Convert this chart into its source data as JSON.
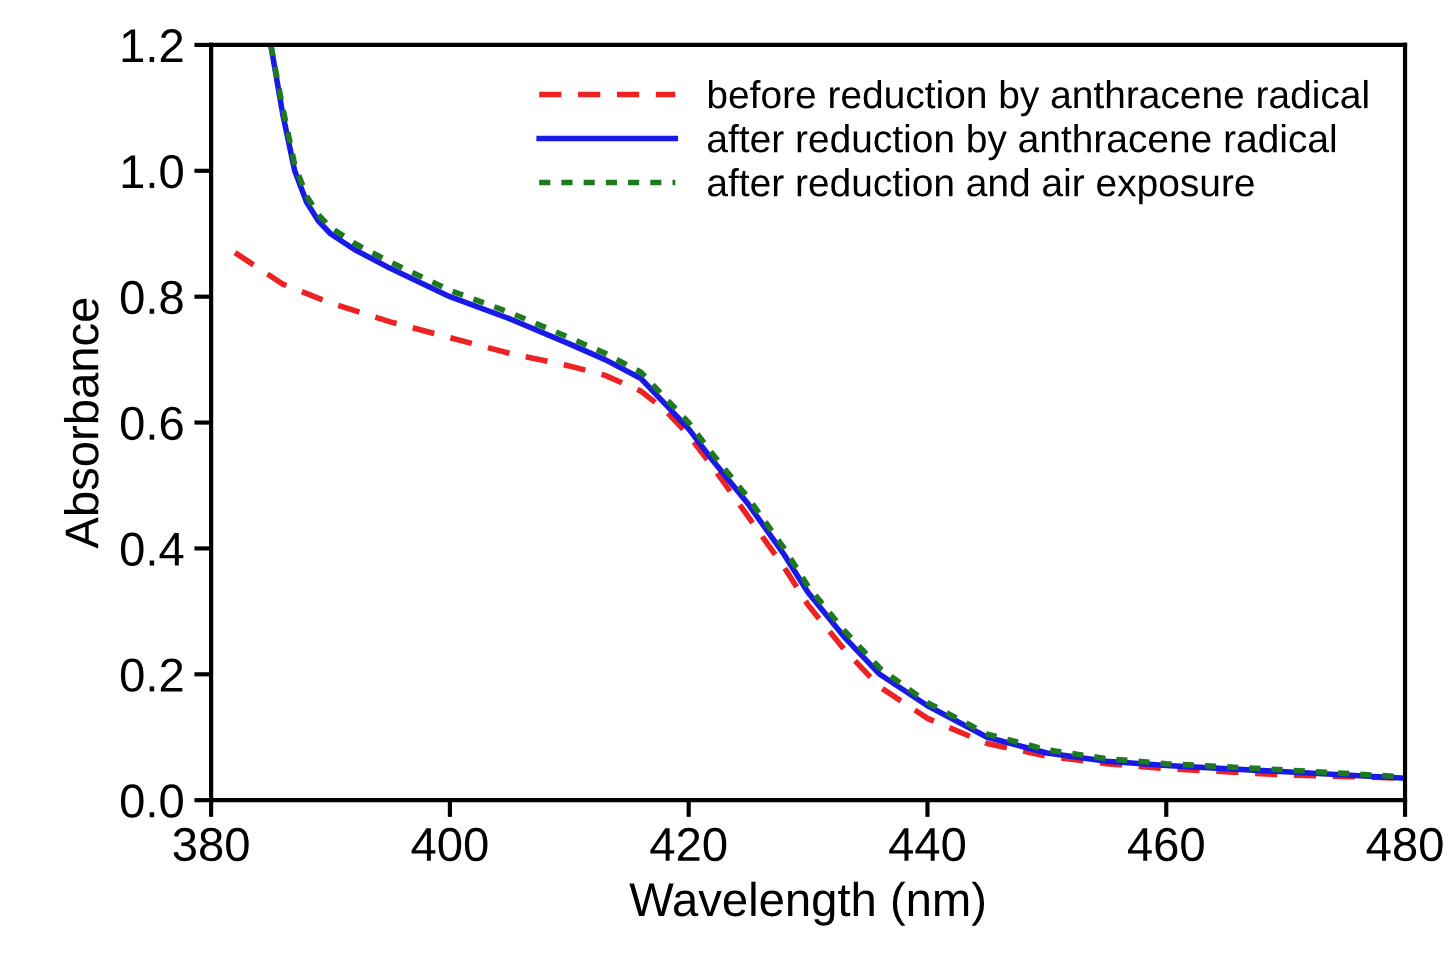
{
  "chart_data": {
    "type": "line",
    "xlabel": "Wavelength (nm)",
    "ylabel": "Absorbance",
    "xlim": [
      380,
      480
    ],
    "ylim": [
      0,
      1.2
    ],
    "xticks": [
      380,
      400,
      420,
      440,
      460,
      480
    ],
    "yticks": [
      {
        "value": 0,
        "label": "0.0"
      },
      0.2,
      0.4,
      0.6,
      0.8,
      {
        "value": 1,
        "label": "1.0"
      },
      1.2
    ],
    "grid": false,
    "legend": "top right",
    "series": [
      {
        "name": "before reduction by anthracene radical",
        "color": "#ee2222",
        "line_style": "dashed",
        "x": [
          382,
          386,
          390,
          395,
          400,
          405,
          410,
          413,
          416,
          418,
          420,
          422,
          425,
          428,
          430,
          433,
          436,
          440,
          445,
          450,
          455,
          460,
          470,
          480
        ],
        "values": [
          0.87,
          0.82,
          0.79,
          0.76,
          0.735,
          0.71,
          0.69,
          0.675,
          0.65,
          0.62,
          0.58,
          0.53,
          0.45,
          0.37,
          0.31,
          0.24,
          0.18,
          0.13,
          0.09,
          0.07,
          0.058,
          0.05,
          0.04,
          0.035
        ]
      },
      {
        "name": "after reduction by anthracene radical",
        "color": "#1a1ae6",
        "line_style": "solid",
        "x": [
          385,
          386,
          387,
          388,
          389,
          390,
          392,
          395,
          400,
          405,
          410,
          413,
          416,
          418,
          420,
          422,
          425,
          428,
          430,
          433,
          436,
          440,
          445,
          450,
          455,
          460,
          470,
          480
        ],
        "values": [
          1.2,
          1.09,
          1.0,
          0.95,
          0.92,
          0.9,
          0.875,
          0.845,
          0.8,
          0.765,
          0.725,
          0.7,
          0.67,
          0.63,
          0.59,
          0.54,
          0.47,
          0.39,
          0.33,
          0.26,
          0.2,
          0.15,
          0.1,
          0.075,
          0.062,
          0.055,
          0.045,
          0.035
        ]
      },
      {
        "name": "after reduction and air exposure",
        "color": "#1e7a1e",
        "line_style": "dotted",
        "x": [
          385,
          386,
          387,
          388,
          389,
          390,
          392,
          395,
          400,
          405,
          410,
          413,
          416,
          418,
          420,
          422,
          425,
          428,
          430,
          433,
          436,
          440,
          445,
          450,
          455,
          460,
          470,
          480
        ],
        "values": [
          1.2,
          1.1,
          1.01,
          0.96,
          0.93,
          0.91,
          0.885,
          0.855,
          0.81,
          0.775,
          0.735,
          0.71,
          0.68,
          0.64,
          0.6,
          0.55,
          0.48,
          0.4,
          0.34,
          0.27,
          0.21,
          0.155,
          0.105,
          0.08,
          0.066,
          0.058,
          0.048,
          0.037
        ]
      }
    ]
  }
}
